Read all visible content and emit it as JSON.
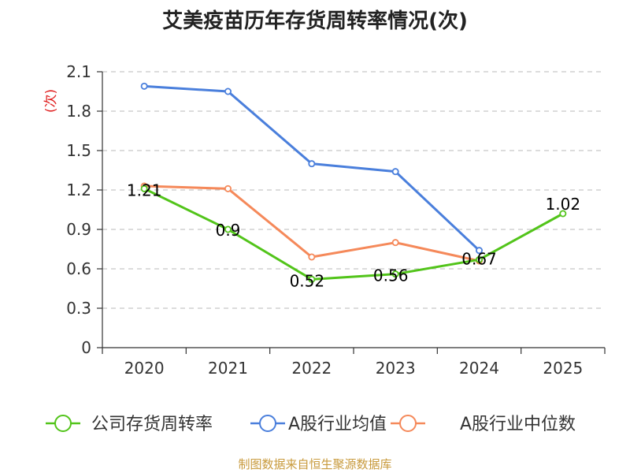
{
  "chart_data": {
    "type": "line",
    "title": "艾美疫苗历年存货周转率情况(次)",
    "ylabel": "(次)",
    "xlabel": "",
    "categories": [
      "2020",
      "2021",
      "2022",
      "2023",
      "2024",
      "2025"
    ],
    "ylim": [
      0,
      2.1
    ],
    "yticks": [
      0,
      0.3,
      0.6,
      0.9,
      1.2,
      1.5,
      1.8,
      2.1
    ],
    "ytick_labels": [
      "0",
      "0.3",
      "0.6",
      "0.9",
      "1.2",
      "1.5",
      "1.8",
      "2.1"
    ],
    "grid": true,
    "legend": "bottom",
    "series": [
      {
        "name": "公司存货周转率",
        "color": "#52c41a",
        "values": [
          1.21,
          0.9,
          0.52,
          0.56,
          0.67,
          1.02
        ],
        "labels": [
          "1.21",
          "0.9",
          "0.52",
          "0.56",
          "0.67",
          "1.02"
        ]
      },
      {
        "name": "A股行业均值",
        "color": "#4a7fdc",
        "values": [
          1.99,
          1.95,
          1.4,
          1.34,
          0.74,
          null
        ]
      },
      {
        "name": "A股行业中位数",
        "color": "#f5895a",
        "values": [
          1.23,
          1.21,
          0.69,
          0.8,
          0.66,
          null
        ]
      }
    ]
  },
  "footer": "制图数据来自恒生聚源数据库"
}
